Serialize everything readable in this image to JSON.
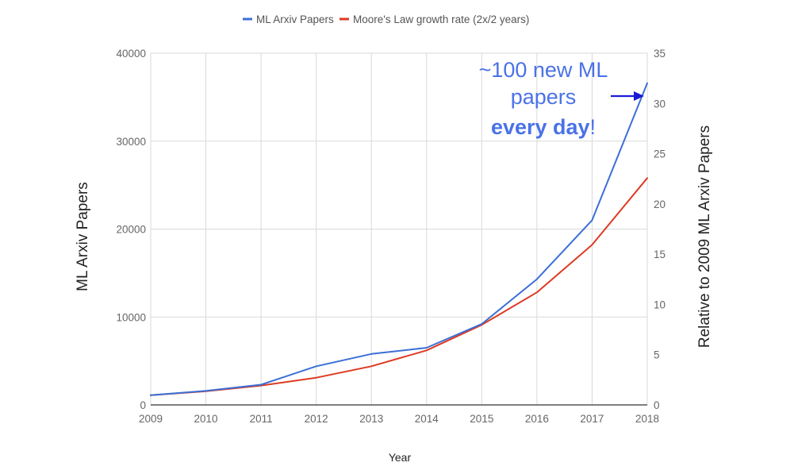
{
  "chart_data": {
    "type": "line",
    "title": "",
    "xlabel": "Year",
    "ylabel": "ML Arxiv Papers",
    "ylabel_right": "Relative to 2009 ML Arxiv Papers",
    "x": [
      2009,
      2010,
      2011,
      2012,
      2013,
      2014,
      2015,
      2016,
      2017,
      2018
    ],
    "xlim": [
      2009,
      2018
    ],
    "ylim": [
      0,
      40000
    ],
    "ylim_right": [
      0,
      35
    ],
    "y_ticks": [
      "0",
      "10000",
      "20000",
      "30000",
      "40000"
    ],
    "y_ticks_right": [
      "0",
      "5",
      "10",
      "15",
      "20",
      "25",
      "30",
      "35"
    ],
    "x_ticks": [
      "2009",
      "2010",
      "2011",
      "2012",
      "2013",
      "2014",
      "2015",
      "2016",
      "2017",
      "2018"
    ],
    "grid": true,
    "legend_position": "top",
    "series": [
      {
        "name": "ML Arxiv Papers",
        "color": "#3b6fd6",
        "values": [
          1100,
          1600,
          2300,
          4400,
          5800,
          6500,
          9200,
          14300,
          21000,
          36600
        ]
      },
      {
        "name": "Moore's Law growth rate (2x/2 years)",
        "color": "#dd3a22",
        "values": [
          1100,
          1550,
          2200,
          3100,
          4400,
          6200,
          9100,
          12800,
          18200,
          25800
        ]
      }
    ],
    "annotation": {
      "line1": "~100 new ML",
      "line2": "papers",
      "line3_bold": "every day",
      "line3_tail": "!",
      "color": "#4a72e8",
      "arrow_color": "#1a1ad6"
    }
  }
}
